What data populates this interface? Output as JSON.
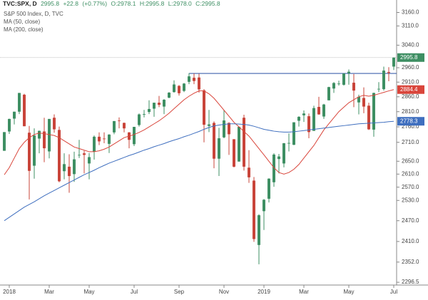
{
  "chart_data": {
    "type": "candlestick",
    "header": {
      "symbol": "TVC:SPX, D",
      "last": "2995.8",
      "change": "+22.8",
      "change_pct": "(+0.77%)",
      "ohlc": [
        "O:2978.1",
        "H:2995.8",
        "L:2978.0",
        "C:2995.8"
      ]
    },
    "log_scale": true,
    "grid": false,
    "ylim": [
      2289,
      3180
    ],
    "yticks": [
      {
        "value": 3160,
        "label": "3160.0"
      },
      {
        "value": 3110,
        "label": "3110.0"
      },
      {
        "value": 3040,
        "label": "3040.0"
      },
      {
        "value": 2960,
        "label": "2960.0"
      },
      {
        "value": 2910,
        "label": "2910.0"
      },
      {
        "value": 2860,
        "label": "2860.0"
      },
      {
        "value": 2810,
        "label": "2810.0"
      },
      {
        "value": 2760,
        "label": "2760.0"
      },
      {
        "value": 2710,
        "label": "2710.0"
      },
      {
        "value": 2650,
        "label": "2650.0"
      },
      {
        "value": 2610,
        "label": "2610.0"
      },
      {
        "value": 2570,
        "label": "2570.0"
      },
      {
        "value": 2530,
        "label": "2530.0"
      },
      {
        "value": 2470,
        "label": "2470.0"
      },
      {
        "value": 2410,
        "label": "2410.0"
      },
      {
        "value": 2352,
        "label": "2352.0"
      },
      {
        "value": 2296.5,
        "label": "2296.5"
      }
    ],
    "categories": [
      null,
      "2018",
      null,
      null,
      null,
      null,
      null,
      null,
      null,
      "Mar",
      null,
      null,
      null,
      null,
      null,
      null,
      null,
      "May",
      null,
      null,
      null,
      null,
      null,
      null,
      null,
      null,
      "Jul",
      null,
      null,
      null,
      null,
      null,
      null,
      null,
      null,
      "Sep",
      null,
      null,
      null,
      null,
      null,
      null,
      null,
      null,
      "Nov",
      null,
      null,
      null,
      null,
      null,
      null,
      null,
      "2019",
      null,
      null,
      null,
      null,
      null,
      null,
      null,
      "Mar",
      null,
      null,
      null,
      null,
      null,
      null,
      null,
      null,
      "May",
      null,
      null,
      null,
      null,
      null,
      null,
      null,
      null,
      "Jul"
    ],
    "hline": {
      "value": 2940,
      "color": "#3f62ad"
    },
    "series": [
      {
        "name": "S&P 500 Index, D, TVC",
        "up_color": "#3e8f63",
        "down_color": "#c9443a",
        "open": [
          2683,
          2745,
          2787,
          2810,
          2867,
          2741,
          2636,
          2722,
          2745,
          2681,
          2790,
          2750,
          2619,
          2633,
          2610,
          2670,
          2675,
          2643,
          2680,
          2728,
          2722,
          2705,
          2742,
          2781,
          2773,
          2742,
          2704,
          2766,
          2800,
          2809,
          2820,
          2840,
          2827,
          2857,
          2876,
          2897,
          2880,
          2911,
          2925,
          2926,
          2882,
          2763,
          2773,
          2658,
          2726,
          2773,
          2720,
          2649,
          2790,
          2630,
          2590,
          2400,
          2498,
          2535,
          2585,
          2657,
          2643,
          2706,
          2702,
          2780,
          2798,
          2795,
          2747,
          2826,
          2794,
          2848,
          2888,
          2904,
          2901,
          2941,
          2908,
          2841,
          2856,
          2830,
          2751,
          2885,
          2886,
          2945,
          2964
        ],
        "high": [
          2743,
          2787,
          2810,
          2873,
          2870,
          2763,
          2755,
          2748,
          2790,
          2786,
          2801,
          2761,
          2675,
          2672,
          2680,
          2718,
          2683,
          2676,
          2732,
          2742,
          2742,
          2736,
          2779,
          2791,
          2774,
          2743,
          2760,
          2804,
          2816,
          2848,
          2840,
          2863,
          2852,
          2876,
          2916,
          2900,
          2907,
          2941,
          2940,
          2939,
          2886,
          2816,
          2778,
          2757,
          2815,
          2775,
          2720,
          2760,
          2800,
          2685,
          2601,
          2489,
          2534,
          2597,
          2675,
          2673,
          2708,
          2739,
          2775,
          2795,
          2814,
          2804,
          2830,
          2860,
          2836,
          2894,
          2910,
          2915,
          2940,
          2954,
          2938,
          2867,
          2892,
          2840,
          2874,
          2910,
          2964,
          2962,
          2995.8
        ],
        "low": [
          2683,
          2737,
          2768,
          2802,
          2762,
          2533,
          2596,
          2675,
          2647,
          2659,
          2741,
          2585,
          2594,
          2553,
          2586,
          2660,
          2612,
          2594,
          2655,
          2701,
          2707,
          2676,
          2736,
          2755,
          2742,
          2691,
          2698,
          2761,
          2791,
          2802,
          2793,
          2825,
          2802,
          2855,
          2874,
          2864,
          2876,
          2903,
          2903,
          2874,
          2710,
          2743,
          2628,
          2604,
          2723,
          2670,
          2631,
          2649,
          2621,
          2583,
          2409,
          2346,
          2443,
          2524,
          2571,
          2612,
          2631,
          2681,
          2701,
          2761,
          2776,
          2723,
          2747,
          2800,
          2786,
          2848,
          2873,
          2898,
          2898,
          2901,
          2825,
          2801,
          2805,
          2750,
          2728,
          2876,
          2881,
          2913,
          2952
        ],
        "close": [
          2743,
          2786,
          2810,
          2873,
          2762,
          2620,
          2732,
          2747,
          2691,
          2786,
          2752,
          2588,
          2641,
          2604,
          2656,
          2670,
          2670,
          2663,
          2728,
          2713,
          2721,
          2735,
          2779,
          2780,
          2755,
          2718,
          2760,
          2801,
          2802,
          2819,
          2840,
          2833,
          2850,
          2874,
          2902,
          2872,
          2905,
          2930,
          2914,
          2885,
          2767,
          2768,
          2658,
          2723,
          2781,
          2736,
          2633,
          2760,
          2633,
          2600,
          2417,
          2486,
          2532,
          2596,
          2671,
          2665,
          2707,
          2708,
          2775,
          2793,
          2804,
          2743,
          2822,
          2801,
          2834,
          2893,
          2907,
          2905,
          2940,
          2946,
          2881,
          2860,
          2827,
          2752,
          2873,
          2887,
          2950,
          2942,
          2995.8
        ]
      },
      {
        "name": "MA (50, close)",
        "color": "#d9453b",
        "values": [
          2608,
          2630,
          2660,
          2690,
          2710,
          2725,
          2735,
          2740,
          2738,
          2735,
          2732,
          2725,
          2715,
          2705,
          2695,
          2690,
          2685,
          2680,
          2680,
          2683,
          2688,
          2695,
          2705,
          2715,
          2725,
          2730,
          2735,
          2742,
          2750,
          2760,
          2770,
          2780,
          2792,
          2805,
          2820,
          2835,
          2850,
          2862,
          2872,
          2880,
          2880,
          2870,
          2855,
          2835,
          2815,
          2795,
          2775,
          2760,
          2745,
          2730,
          2710,
          2690,
          2670,
          2650,
          2630,
          2615,
          2610,
          2615,
          2625,
          2640,
          2660,
          2680,
          2700,
          2725,
          2750,
          2770,
          2790,
          2810,
          2825,
          2840,
          2850,
          2860,
          2865,
          2862,
          2865,
          2870,
          2875,
          2880,
          2884.4
        ]
      },
      {
        "name": "MA (200, close)",
        "color": "#3f6fbf",
        "values": [
          2470,
          2480,
          2490,
          2500,
          2510,
          2518,
          2526,
          2535,
          2544,
          2552,
          2560,
          2568,
          2576,
          2584,
          2592,
          2600,
          2608,
          2615,
          2622,
          2630,
          2637,
          2644,
          2650,
          2656,
          2662,
          2668,
          2673,
          2679,
          2685,
          2690,
          2696,
          2701,
          2706,
          2712,
          2717,
          2722,
          2728,
          2733,
          2739,
          2745,
          2752,
          2758,
          2763,
          2766,
          2768,
          2770,
          2770,
          2769,
          2768,
          2766,
          2762,
          2757,
          2752,
          2749,
          2746,
          2744,
          2743,
          2743,
          2744,
          2746,
          2748,
          2750,
          2752,
          2754,
          2756,
          2758,
          2760,
          2762,
          2764,
          2766,
          2768,
          2770,
          2771,
          2772,
          2773,
          2774,
          2775,
          2777,
          2778.3
        ]
      }
    ]
  }
}
